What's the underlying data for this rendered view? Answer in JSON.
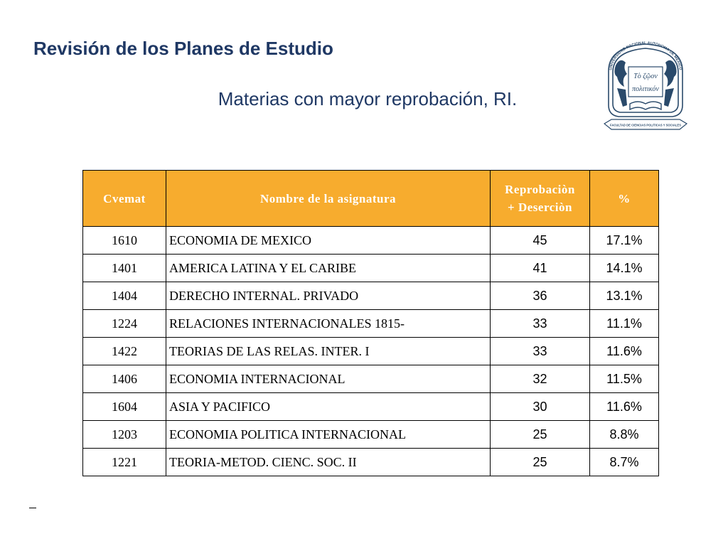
{
  "slide": {
    "title": "Revisión de los Planes de Estudio",
    "subtitle": "Materias con mayor reprobación, RI."
  },
  "emblem": {
    "top_text": "UNIVERSIDAD NACIONAL AUTONOMA DE MEXICO",
    "motto_line1": "Τὸ ζῷον",
    "motto_line2": "πολιτικόν",
    "ribbon_text": "FACULTAD DE CIENCIAS POLITICAS Y SOCIALES",
    "color": "#2a4a6b"
  },
  "table": {
    "header_color": "#f7ac2e",
    "headers": {
      "code": "Cvemat",
      "name": "Nombre de la asignatura",
      "rep_line1": "Reprobaciòn",
      "rep_line2": "+ Deserciòn",
      "pct": "%"
    },
    "rows": [
      {
        "code": "1610",
        "name": "ECONOMIA DE MEXICO",
        "rep": "45",
        "pct": "17.1%"
      },
      {
        "code": "1401",
        "name": "AMERICA LATINA Y EL CARIBE",
        "rep": "41",
        "pct": "14.1%"
      },
      {
        "code": "1404",
        "name": "DERECHO INTERNAL. PRIVADO",
        "rep": "36",
        "pct": "13.1%"
      },
      {
        "code": "1224",
        "name": "RELACIONES INTERNACIONALES 1815-",
        "rep": "33",
        "pct": "11.1%"
      },
      {
        "code": "1422",
        "name": "TEORIAS DE LAS RELAS. INTER. I",
        "rep": "33",
        "pct": "11.6%"
      },
      {
        "code": "1406",
        "name": "ECONOMIA INTERNACIONAL",
        "rep": "32",
        "pct": "11.5%"
      },
      {
        "code": "1604",
        "name": "ASIA Y PACIFICO",
        "rep": "30",
        "pct": "11.6%"
      },
      {
        "code": "1203",
        "name": "ECONOMIA POLITICA INTERNACIONAL",
        "rep": "25",
        "pct": "8.8%"
      },
      {
        "code": "1221",
        "name": "TEORIA-METOD. CIENC. SOC. II",
        "rep": "25",
        "pct": "8.7%"
      }
    ]
  }
}
